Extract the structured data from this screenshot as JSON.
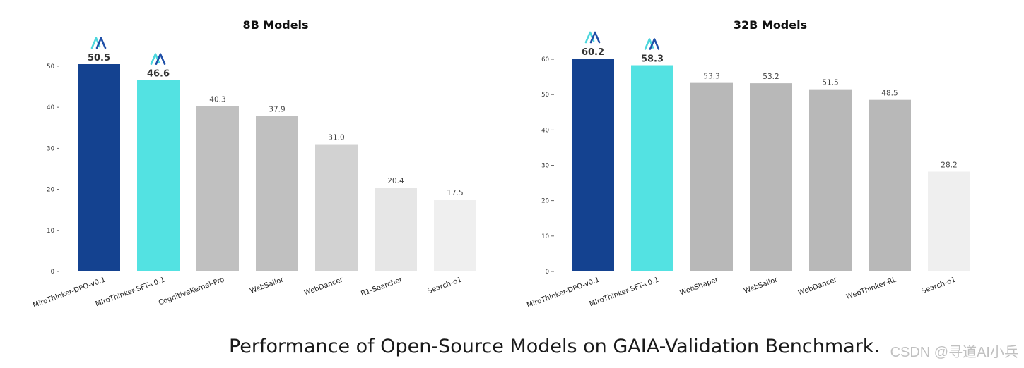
{
  "colors": {
    "dpo": "#144290",
    "sft": "#53e2e2",
    "gray_dark": "#b8b8b8",
    "gray_mid": "#c0c0c0",
    "gray_light": "#d2d2d2",
    "gray_lighter": "#e6e6e6",
    "gray_lightest": "#efefef",
    "logo_left": "#4cd6dc",
    "logo_right": "#1f4fa8"
  },
  "caption": "Performance of Open-Source Models on GAIA-Validation Benchmark.",
  "watermark": "CSDN @寻道AI小兵",
  "chart_data": [
    {
      "type": "bar",
      "title": "8B Models",
      "xlabel": "",
      "ylabel": "",
      "ylim": [
        0,
        50.5
      ],
      "yticks": [
        0,
        10,
        20,
        30,
        40,
        50
      ],
      "grid": false,
      "categories": [
        "MiroThinker-DPO-v0.1",
        "MiroThinker-SFT-v0.1",
        "CognitiveKernel-Pro",
        "WebSailor",
        "WebDancer",
        "R1-Searcher",
        "Search-o1"
      ],
      "values": [
        50.5,
        46.6,
        40.3,
        37.9,
        31.0,
        20.4,
        17.5
      ],
      "value_labels": [
        "50.5",
        "46.6",
        "40.3",
        "37.9",
        "31.0",
        "20.4",
        "17.5"
      ],
      "highlight": [
        true,
        true,
        false,
        false,
        false,
        false,
        false
      ],
      "bar_colors": [
        "dpo",
        "sft",
        "gray_mid",
        "gray_mid",
        "gray_light",
        "gray_lighter",
        "gray_lightest"
      ]
    },
    {
      "type": "bar",
      "title": "32B Models",
      "xlabel": "",
      "ylabel": "",
      "ylim": [
        0,
        60.2
      ],
      "yticks": [
        0,
        10,
        20,
        30,
        40,
        50,
        60
      ],
      "grid": false,
      "categories": [
        "MiroThinker-DPO-v0.1",
        "MiroThinker-SFT-v0.1",
        "WebShaper",
        "WebSailor",
        "WebDancer",
        "WebThinker-RL",
        "Search-o1"
      ],
      "values": [
        60.2,
        58.3,
        53.3,
        53.2,
        51.5,
        48.5,
        28.2
      ],
      "value_labels": [
        "60.2",
        "58.3",
        "53.3",
        "53.2",
        "51.5",
        "48.5",
        "28.2"
      ],
      "highlight": [
        true,
        true,
        false,
        false,
        false,
        false,
        false
      ],
      "bar_colors": [
        "dpo",
        "sft",
        "gray_dark",
        "gray_dark",
        "gray_dark",
        "gray_dark",
        "gray_lightest"
      ]
    }
  ]
}
